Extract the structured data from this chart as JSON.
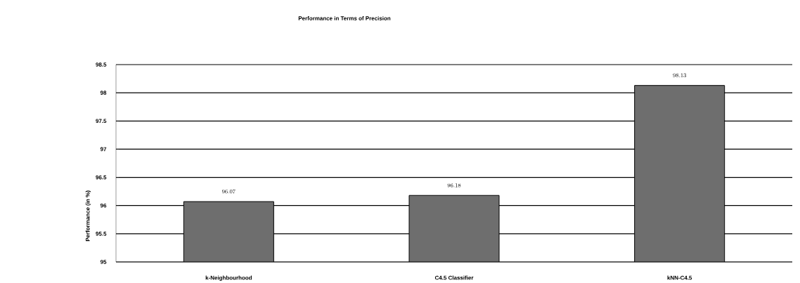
{
  "chart_data": {
    "type": "bar",
    "title": "Performance in Terms of Precision",
    "ylabel": "Performance (in %)",
    "categories": [
      "k-Neighbourhood",
      "C4.5 Classifier",
      "kNN-C4.5"
    ],
    "values": [
      96.07,
      96.18,
      98.13
    ],
    "color": "#6e6e6e",
    "ylim": [
      95,
      98.5
    ],
    "yticks": [
      95,
      95.5,
      96,
      96.5,
      97,
      97.5,
      98,
      98.5
    ],
    "grid": "y",
    "data_labels": true
  }
}
